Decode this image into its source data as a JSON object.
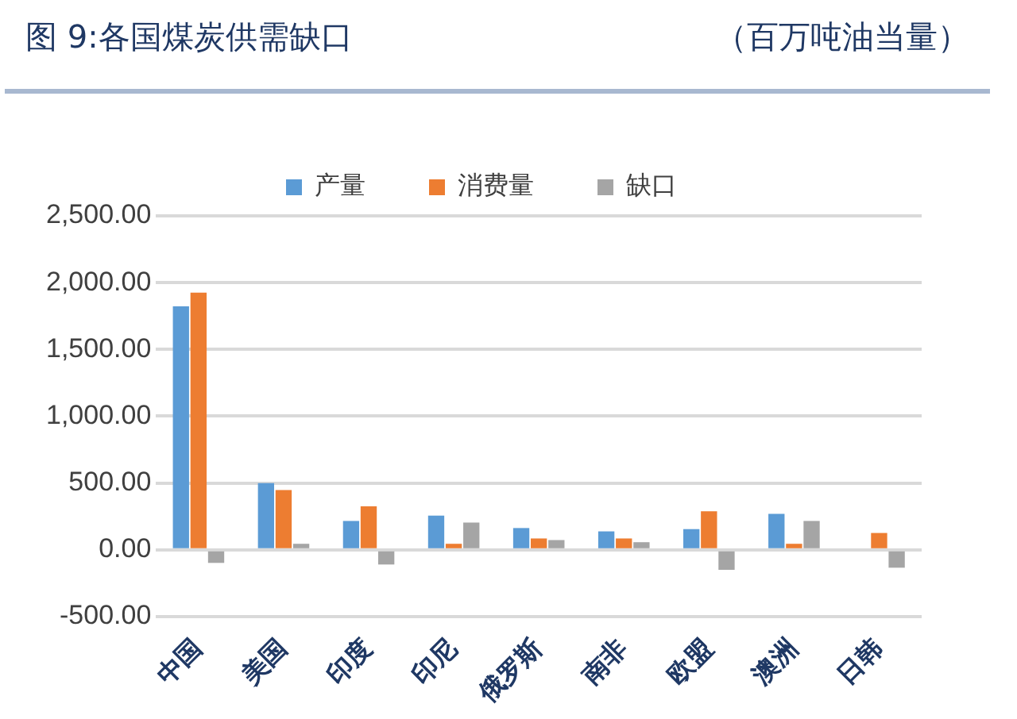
{
  "chart_data": {
    "type": "bar",
    "title": "图 9:各国煤炭供需缺口",
    "subtitle": "（百万吨油当量）",
    "categories": [
      "中国",
      "美国",
      "印度",
      "印尼",
      "俄罗斯",
      "南非",
      "欧盟",
      "澳洲",
      "日韩"
    ],
    "series": [
      {
        "name": "产量",
        "color": "#5b9bd5",
        "values": [
          1823,
          500,
          216,
          256,
          163,
          138,
          155,
          269,
          null
        ]
      },
      {
        "name": "消费量",
        "color": "#ed7d31",
        "values": [
          1925,
          448,
          326,
          45,
          85,
          85,
          289,
          45,
          126
        ]
      },
      {
        "name": "缺口",
        "color": "#a5a5a5",
        "values": [
          -98,
          45,
          -110,
          204,
          73,
          57,
          -150,
          216,
          -134
        ]
      }
    ],
    "ylim": [
      -500,
      2500
    ],
    "yticks": [
      {
        "value": -500,
        "label": "-500.00"
      },
      {
        "value": 0,
        "label": "0.00"
      },
      {
        "value": 500,
        "label": "500.00"
      },
      {
        "value": 1000,
        "label": "1,000.00"
      },
      {
        "value": 1500,
        "label": "1,500.00"
      },
      {
        "value": 2000,
        "label": "2,000.00"
      },
      {
        "value": 2500,
        "label": "2,500.00"
      }
    ],
    "grid": "y",
    "legend": "top"
  }
}
